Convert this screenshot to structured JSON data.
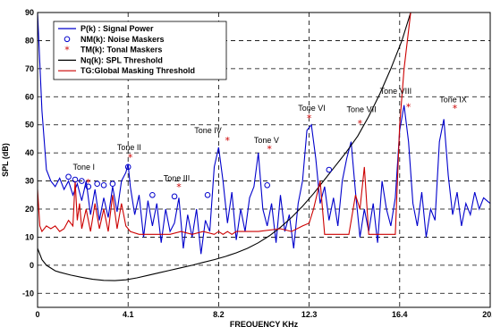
{
  "chart_data": {
    "type": "line",
    "xlabel": "FREQUENCY KHz",
    "ylabel": "SPL (dB)",
    "xlim": [
      0,
      20.5
    ],
    "ylim": [
      -15,
      90
    ],
    "x_ticks": [
      0,
      4.1,
      8.2,
      12.3,
      16.4,
      20.5
    ],
    "x_tick_labels": [
      "0",
      "4.1",
      "8.2",
      "12.3",
      "16.4",
      "20.5"
    ],
    "y_ticks": [
      -10,
      0,
      10,
      20,
      30,
      40,
      50,
      60,
      70,
      80,
      90
    ],
    "y_tick_labels": [
      "-10",
      "0",
      "10",
      "20",
      "30",
      "40",
      "50",
      "60",
      "70",
      "80",
      "90"
    ],
    "grid": true,
    "legend_position": "top-left",
    "legend": [
      {
        "label": "P(k) : Signal Power",
        "color": "#0000cc",
        "marker": "line"
      },
      {
        "label": "NM(k): Noise Maskers",
        "color": "#0000cc",
        "marker": "circle"
      },
      {
        "label": "TM(k): Tonal Maskers",
        "color": "#cc0000",
        "marker": "star"
      },
      {
        "label": "Nq(k): SPL Threshold",
        "color": "#000000",
        "marker": "line"
      },
      {
        "label": "TG:Global Masking Threshold",
        "color": "#cc0000",
        "marker": "line"
      }
    ],
    "annotations": [
      {
        "text": "Tone I",
        "x": 1.6,
        "y": 34
      },
      {
        "text": "Tone II",
        "x": 3.6,
        "y": 41
      },
      {
        "text": "Tone III",
        "x": 5.7,
        "y": 30
      },
      {
        "text": "Tone IV",
        "x": 7.1,
        "y": 47
      },
      {
        "text": "Tone V",
        "x": 9.8,
        "y": 43.5
      },
      {
        "text": "Tone VI",
        "x": 11.8,
        "y": 55
      },
      {
        "text": "Tone VII",
        "x": 14.0,
        "y": 54.5
      },
      {
        "text": "Tone VIII",
        "x": 15.5,
        "y": 61
      },
      {
        "text": "Tone IX",
        "x": 18.2,
        "y": 58
      }
    ],
    "series": [
      {
        "name": "P(k) : Signal Power",
        "color": "#0000cc",
        "x": [
          0.0,
          0.2,
          0.4,
          0.6,
          0.8,
          1.0,
          1.2,
          1.4,
          1.6,
          1.8,
          2.0,
          2.2,
          2.4,
          2.6,
          2.8,
          3.0,
          3.2,
          3.4,
          3.6,
          3.8,
          4.0,
          4.1,
          4.2,
          4.4,
          4.6,
          4.8,
          5.0,
          5.2,
          5.4,
          5.6,
          5.8,
          6.0,
          6.2,
          6.4,
          6.6,
          6.8,
          7.0,
          7.2,
          7.4,
          7.6,
          7.8,
          8.0,
          8.2,
          8.4,
          8.6,
          8.8,
          9.0,
          9.2,
          9.4,
          9.6,
          9.8,
          10.0,
          10.2,
          10.4,
          10.6,
          10.8,
          11.0,
          11.2,
          11.4,
          11.6,
          11.8,
          12.0,
          12.2,
          12.4,
          12.6,
          12.8,
          13.0,
          13.2,
          13.4,
          13.6,
          13.8,
          14.0,
          14.2,
          14.4,
          14.6,
          14.8,
          15.0,
          15.2,
          15.4,
          15.6,
          15.8,
          16.0,
          16.2,
          16.4,
          16.6,
          16.8,
          17.0,
          17.2,
          17.4,
          17.6,
          17.8,
          18.0,
          18.2,
          18.4,
          18.6,
          18.8,
          19.0,
          19.2,
          19.4,
          19.6,
          19.8,
          20.0,
          20.2,
          20.5
        ],
        "y": [
          90,
          55,
          34,
          30,
          28,
          31,
          27,
          30,
          25,
          29,
          23,
          30,
          18,
          27,
          16,
          24,
          17,
          28,
          19,
          30,
          33,
          36,
          28,
          18,
          25,
          10,
          23,
          14,
          22,
          8,
          20,
          12,
          15,
          24,
          6,
          18,
          10,
          20,
          4,
          16,
          12,
          35,
          42,
          30,
          15,
          26,
          9,
          20,
          12,
          24,
          28,
          40,
          20,
          14,
          22,
          8,
          25,
          12,
          18,
          6,
          22,
          30,
          48,
          50,
          38,
          22,
          28,
          16,
          24,
          14,
          30,
          38,
          44,
          26,
          10,
          20,
          12,
          22,
          8,
          30,
          20,
          14,
          24,
          48,
          57,
          44,
          22,
          14,
          26,
          10,
          20,
          16,
          44,
          52,
          32,
          18,
          26,
          14,
          22,
          18,
          26,
          20,
          24,
          22
        ]
      },
      {
        "name": "Nq(k): SPL Threshold",
        "color": "#000000",
        "x": [
          0.0,
          0.2,
          0.4,
          0.6,
          0.8,
          1.0,
          1.5,
          2.0,
          2.5,
          3.0,
          3.5,
          4.0,
          4.5,
          5.0,
          5.5,
          6.0,
          6.5,
          7.0,
          7.5,
          8.0,
          8.5,
          9.0,
          9.5,
          10.0,
          10.5,
          11.0,
          11.5,
          12.0,
          12.5,
          13.0,
          13.5,
          14.0,
          14.5,
          15.0,
          15.5,
          16.0,
          16.5,
          16.9
        ],
        "y": [
          6,
          2,
          0,
          -1,
          -2,
          -2.5,
          -3.5,
          -4.3,
          -5,
          -5.4,
          -5.5,
          -5.2,
          -4.5,
          -3.6,
          -2.7,
          -1.8,
          -0.9,
          0,
          1,
          2,
          3.1,
          4.4,
          6,
          8,
          10.5,
          13.5,
          17,
          21,
          25.5,
          30.5,
          35.5,
          40.5,
          46,
          53,
          61,
          70,
          80,
          90
        ]
      },
      {
        "name": "TG:Global Masking Threshold",
        "color": "#cc0000",
        "x": [
          0.0,
          0.1,
          0.2,
          0.4,
          0.6,
          0.8,
          1.0,
          1.2,
          1.4,
          1.6,
          1.7,
          1.8,
          1.9,
          2.0,
          2.2,
          2.4,
          2.6,
          2.8,
          3.0,
          3.2,
          3.4,
          3.6,
          3.8,
          4.0,
          4.2,
          4.6,
          5.0,
          5.5,
          6.0,
          6.5,
          7.0,
          7.5,
          8.0,
          8.2,
          8.4,
          8.6,
          8.8,
          9.0,
          10.0,
          11.0,
          11.5,
          12.0,
          12.3,
          12.5,
          12.8,
          13.0,
          13.2,
          13.4,
          13.6,
          13.8,
          14.0,
          14.1,
          14.4,
          14.6,
          14.8,
          15.0,
          15.2,
          15.4,
          15.6,
          15.8,
          16.0,
          16.2,
          16.4,
          16.6,
          16.9
        ],
        "y": [
          27,
          14,
          12,
          14,
          13,
          14,
          12,
          13,
          16,
          14,
          30,
          16,
          22,
          13,
          20,
          12,
          22,
          13,
          20,
          12,
          25,
          13,
          22,
          14,
          12,
          11,
          11,
          11,
          11,
          12,
          11,
          12,
          11,
          12,
          11,
          12,
          11,
          12,
          12,
          13,
          12,
          14,
          15,
          20,
          30,
          11,
          11,
          11,
          11,
          11,
          11,
          11,
          25,
          20,
          35,
          11,
          11,
          11,
          11,
          11,
          11,
          11,
          50,
          70,
          90
        ]
      }
    ],
    "noise_maskers": {
      "x": [
        1.4,
        1.7,
        2.0,
        2.3,
        2.7,
        3.0,
        3.4,
        4.1,
        5.2,
        6.2,
        7.7,
        10.4,
        13.2
      ],
      "y": [
        31.5,
        30.5,
        30,
        28,
        29,
        28.5,
        29,
        35,
        25,
        24.5,
        25,
        28.5,
        34
      ]
    },
    "tonal_maskers": {
      "x": [
        2.3,
        4.2,
        6.4,
        8.6,
        10.5,
        12.3,
        14.6,
        16.8,
        18.9
      ],
      "y": [
        29.5,
        38.5,
        28,
        44.5,
        41.5,
        52.5,
        50.5,
        56.5,
        56
      ]
    }
  }
}
